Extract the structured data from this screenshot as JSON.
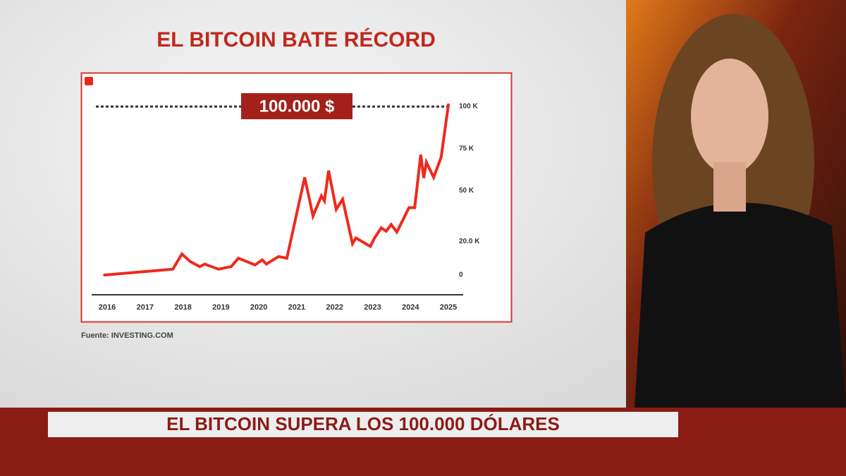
{
  "chart_data": {
    "type": "line",
    "title": "EL BITCOIN BATE RÉCORD",
    "source": "Fuente: INVESTING.COM",
    "ticker": "EL BITCOIN SUPERA LOS 100.000 DÓLARES",
    "reference": {
      "value": 100000,
      "label": "100.000 $"
    },
    "color": "#ee2a1d",
    "x": [
      2015.93,
      2017.73,
      2017.97,
      2018.19,
      2018.44,
      2018.57,
      2018.94,
      2019.27,
      2019.46,
      2019.9,
      2020.09,
      2020.2,
      2020.52,
      2020.74,
      2021.21,
      2021.43,
      2021.65,
      2021.73,
      2021.84,
      2022.04,
      2022.21,
      2022.47,
      2022.56,
      2022.94,
      2023.05,
      2023.23,
      2023.36,
      2023.49,
      2023.64,
      2023.96,
      2024.11,
      2024.27,
      2024.35,
      2024.42,
      2024.61,
      2024.81,
      2025.0
    ],
    "values": [
      0,
      3500,
      12500,
      8000,
      5000,
      6500,
      3500,
      5000,
      10000,
      6000,
      9000,
      6500,
      11000,
      10000,
      58000,
      35000,
      47000,
      44000,
      62000,
      39000,
      45000,
      18600,
      22000,
      17000,
      22000,
      28000,
      26000,
      30000,
      25500,
      40000,
      40000,
      71400,
      57600,
      67000,
      58000,
      70000,
      101000
    ],
    "xlim": [
      2015.59,
      2025.39
    ],
    "xticks": [
      2016,
      2017,
      2018,
      2019,
      2020,
      2021,
      2022,
      2023,
      2024,
      2025
    ],
    "ylim": [
      -11700,
      101300
    ],
    "yticks": [
      0,
      {
        "value": 20000,
        "label": "20.0 K"
      },
      {
        "value": 50000,
        "label": "50 K"
      },
      {
        "value": 75000,
        "label": "75 K"
      },
      {
        "value": 100000,
        "label": "100 K"
      }
    ],
    "grid": false
  }
}
